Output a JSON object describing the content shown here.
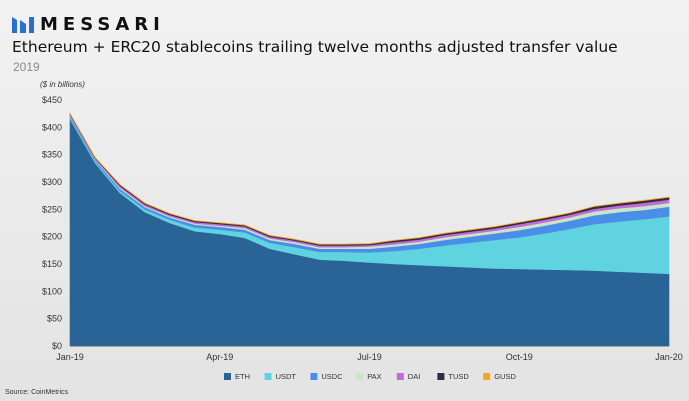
{
  "brand": {
    "name": "MESSARI"
  },
  "header": {
    "title": "Ethereum + ERC20 stablecoins trailing twelve months adjusted transfer value",
    "subtitle": "2019"
  },
  "source": "Source: CoinMetrics",
  "chart_data": {
    "type": "area",
    "stacked": true,
    "title": "Ethereum + ERC20 stablecoins trailing twelve months adjusted transfer value",
    "subtitle": "2019",
    "ylabel": "($ in billions)",
    "xlabel": "",
    "ylim": [
      0,
      450
    ],
    "yticks": [
      0,
      50,
      100,
      150,
      200,
      250,
      300,
      350,
      400,
      450
    ],
    "ytick_labels": [
      "$0",
      "$50",
      "$100",
      "$150",
      "$200",
      "$250",
      "$300",
      "$350",
      "$400",
      "$450"
    ],
    "xticks": [
      0,
      3,
      6,
      9,
      12
    ],
    "xtick_labels": [
      "Jan-19",
      "Apr-19",
      "Jul-19",
      "Oct-19",
      "Jan-20"
    ],
    "grid": false,
    "legend_position": "bottom",
    "x": [
      0,
      0.25,
      0.5,
      1,
      1.5,
      2,
      2.5,
      3,
      3.5,
      4,
      4.5,
      5,
      5.5,
      6,
      6.5,
      7,
      7.5,
      8,
      8.5,
      9,
      9.5,
      10,
      10.5,
      11,
      11.5,
      12
    ],
    "series": [
      {
        "name": "ETH",
        "color": "#2a6496",
        "values": [
          415,
          375,
          335,
          280,
          245,
          225,
          210,
          205,
          198,
          178,
          168,
          158,
          156,
          153,
          150,
          148,
          146,
          144,
          142,
          141,
          140,
          139,
          138,
          136,
          134,
          132
        ]
      },
      {
        "name": "USDT",
        "color": "#5fd3e0",
        "values": [
          3,
          3,
          3,
          4,
          5,
          6,
          7,
          8,
          10,
          11,
          13,
          14,
          16,
          18,
          24,
          30,
          38,
          45,
          52,
          58,
          66,
          75,
          85,
          92,
          98,
          105
        ]
      },
      {
        "name": "USDC",
        "color": "#4b8ee8",
        "values": [
          3,
          3,
          3,
          4,
          4,
          4,
          5,
          5,
          5,
          5,
          6,
          6,
          6,
          7,
          8,
          9,
          10,
          11,
          12,
          13,
          14,
          15,
          16,
          17,
          17,
          18
        ]
      },
      {
        "name": "PAX",
        "color": "#c8e6c9",
        "values": [
          1,
          1,
          1,
          2,
          2,
          2,
          2,
          2,
          3,
          3,
          3,
          3,
          3,
          4,
          4,
          4,
          5,
          5,
          5,
          6,
          6,
          6,
          7,
          7,
          7,
          7
        ]
      },
      {
        "name": "DAI",
        "color": "#c36ad6",
        "values": [
          2,
          2,
          2,
          3,
          3,
          3,
          3,
          3,
          3,
          3,
          3,
          3,
          3,
          3,
          4,
          4,
          4,
          4,
          4,
          5,
          5,
          5,
          5,
          5,
          6,
          6
        ]
      },
      {
        "name": "TUSD",
        "color": "#2b2f42",
        "values": [
          1,
          1,
          1,
          2,
          2,
          2,
          2,
          2,
          2,
          2,
          2,
          2,
          2,
          2,
          3,
          3,
          3,
          3,
          3,
          3,
          3,
          3,
          4,
          4,
          4,
          4
        ]
      },
      {
        "name": "GUSD",
        "color": "#f5a623",
        "values": [
          0.5,
          0.5,
          0.5,
          0.5,
          0.5,
          0.5,
          0.5,
          0.5,
          0.5,
          0.5,
          0.5,
          0.5,
          0.5,
          0.5,
          0.5,
          0.5,
          0.5,
          0.5,
          0.5,
          0.5,
          0.5,
          0.5,
          0.5,
          0.5,
          0.5,
          0.5
        ]
      }
    ]
  }
}
